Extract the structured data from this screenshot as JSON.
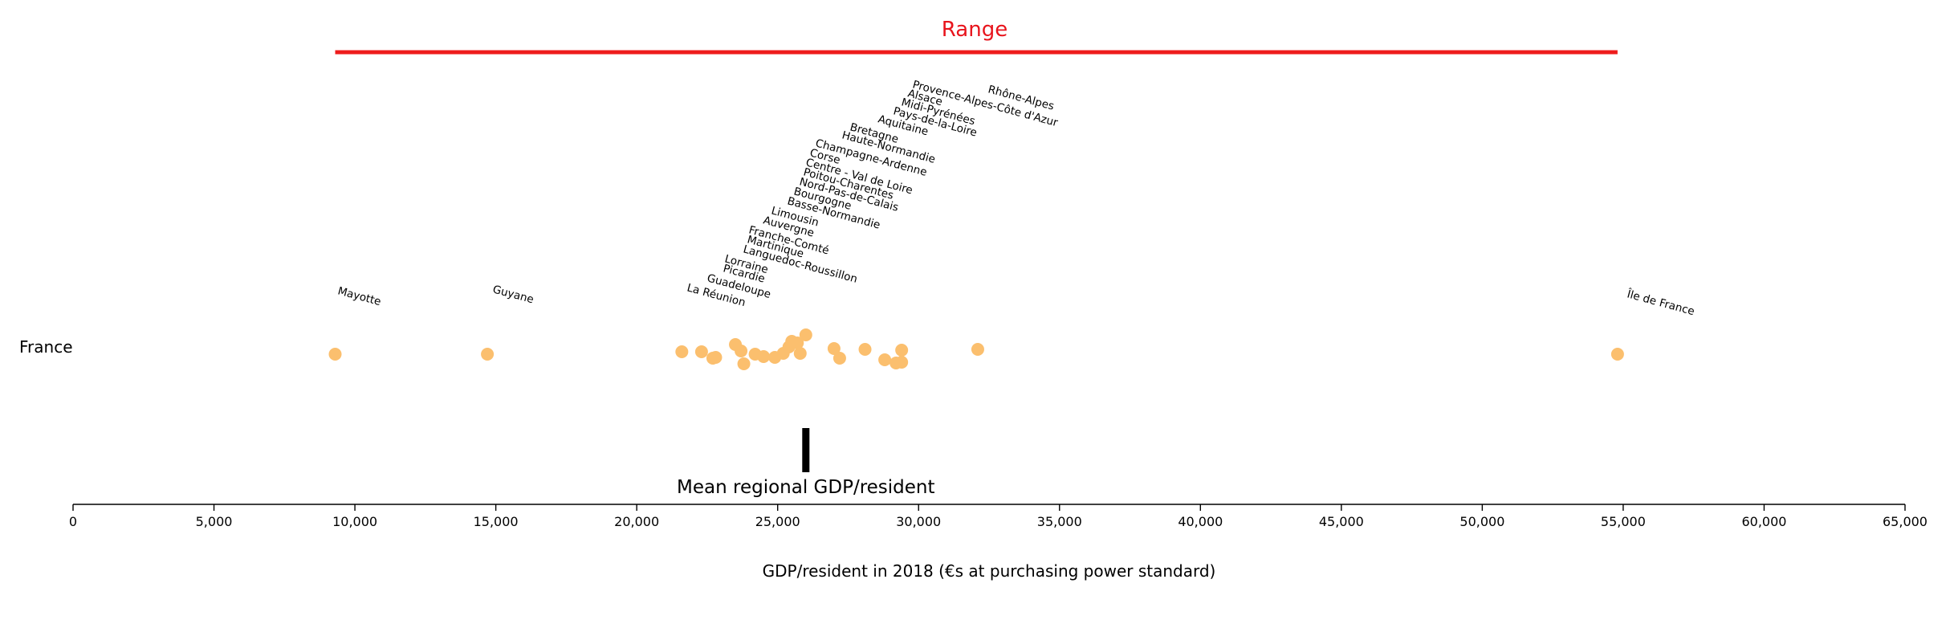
{
  "chart_data": {
    "type": "scatter",
    "row_label": "France",
    "range_title": "Range",
    "mean_label": "Mean regional GDP/resident",
    "xlabel": "GDP/resident in 2018 (€s at purchasing power standard)",
    "xlim": [
      0,
      65000
    ],
    "xticks": [
      {
        "value": 0,
        "label": "0"
      },
      {
        "value": 5000,
        "label": "5,000"
      },
      {
        "value": 10000,
        "label": "10,000"
      },
      {
        "value": 15000,
        "label": "15,000"
      },
      {
        "value": 20000,
        "label": "20,000"
      },
      {
        "value": 25000,
        "label": "25,000"
      },
      {
        "value": 30000,
        "label": "30,000"
      },
      {
        "value": 35000,
        "label": "35,000"
      },
      {
        "value": 40000,
        "label": "40,000"
      },
      {
        "value": 45000,
        "label": "45,000"
      },
      {
        "value": 50000,
        "label": "50,000"
      },
      {
        "value": 55000,
        "label": "55,000"
      },
      {
        "value": 60000,
        "label": "60,000"
      },
      {
        "value": 65000,
        "label": "65,000"
      }
    ],
    "range": [
      9300,
      54800
    ],
    "mean": 26000,
    "colors": {
      "points": "#fbbf6e",
      "range": "#ee1c1c",
      "range_title": "#e8141c",
      "mean": "#000000"
    },
    "regions": [
      {
        "name": "Mayotte",
        "value": 9300
      },
      {
        "name": "Guyane",
        "value": 14700
      },
      {
        "name": "La Réunion",
        "value": 21600
      },
      {
        "name": "Guadeloupe",
        "value": 22300
      },
      {
        "name": "Picardie",
        "value": 22700
      },
      {
        "name": "Lorraine",
        "value": 22800
      },
      {
        "name": "Languedoc-Roussillon",
        "value": 23500
      },
      {
        "name": "Martinique",
        "value": 23700
      },
      {
        "name": "Franche-Comté",
        "value": 23800
      },
      {
        "name": "Auvergne",
        "value": 24200
      },
      {
        "name": "Limousin",
        "value": 24500
      },
      {
        "name": "Basse-Normandie",
        "value": 24900
      },
      {
        "name": "Bourgogne",
        "value": 25200
      },
      {
        "name": "Nord-Pas-de-Calais",
        "value": 25400
      },
      {
        "name": "Poitou-Charentes",
        "value": 25500
      },
      {
        "name": "Centre - Val de Loire",
        "value": 25700
      },
      {
        "name": "Corse",
        "value": 25800
      },
      {
        "name": "Champagne-Ardenne",
        "value": 26000
      },
      {
        "name": "Haute-Normandie",
        "value": 27000
      },
      {
        "name": "Bretagne",
        "value": 27200
      },
      {
        "name": "Aquitaine",
        "value": 28100
      },
      {
        "name": "Pays-de-la-Loire",
        "value": 28800
      },
      {
        "name": "Midi-Pyrénées",
        "value": 29200
      },
      {
        "name": "Alsace",
        "value": 29400
      },
      {
        "name": "Provence-Alpes-Côte d'Azur",
        "value": 29400
      },
      {
        "name": "Rhône-Alpes",
        "value": 32100
      },
      {
        "name": "Île de France",
        "value": 54800
      }
    ]
  }
}
